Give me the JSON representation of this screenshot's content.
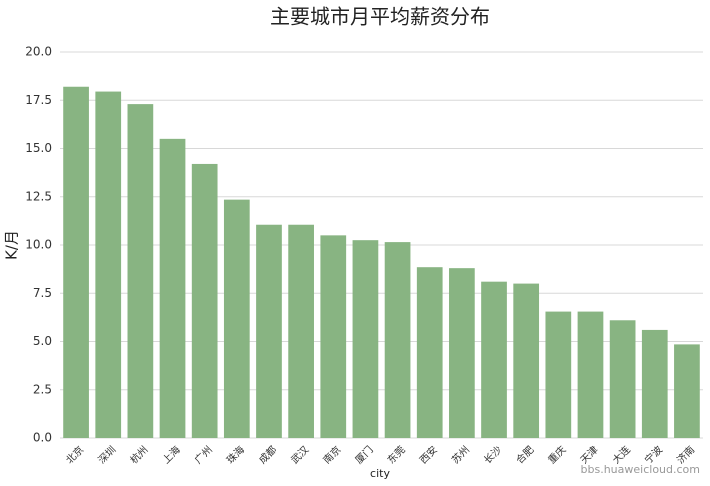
{
  "chart_data": {
    "type": "bar",
    "title": "主要城市月平均薪资分布",
    "xlabel": "city",
    "ylabel": "K/月",
    "categories": [
      "北京",
      "深圳",
      "杭州",
      "上海",
      "广州",
      "珠海",
      "成都",
      "武汉",
      "南京",
      "厦门",
      "东莞",
      "西安",
      "苏州",
      "长沙",
      "合肥",
      "重庆",
      "天津",
      "大连",
      "宁波",
      "济南"
    ],
    "values": [
      18.2,
      17.95,
      17.3,
      15.5,
      14.2,
      12.35,
      11.05,
      11.05,
      10.5,
      10.25,
      10.15,
      8.85,
      8.8,
      8.1,
      8.0,
      6.55,
      6.55,
      6.1,
      5.6,
      4.85
    ],
    "color": "#88b482",
    "ylim": [
      0,
      20
    ],
    "yticks": [
      {
        "value": 0,
        "label": "0.0"
      },
      2.5,
      {
        "value": 5,
        "label": "5.0"
      },
      7.5,
      {
        "value": 10,
        "label": "10.0"
      },
      12.5,
      {
        "value": 15,
        "label": "15.0"
      },
      17.5,
      {
        "value": 20,
        "label": "20.0"
      }
    ],
    "grid": true,
    "watermark": "bbs.huaweicloud.com"
  }
}
